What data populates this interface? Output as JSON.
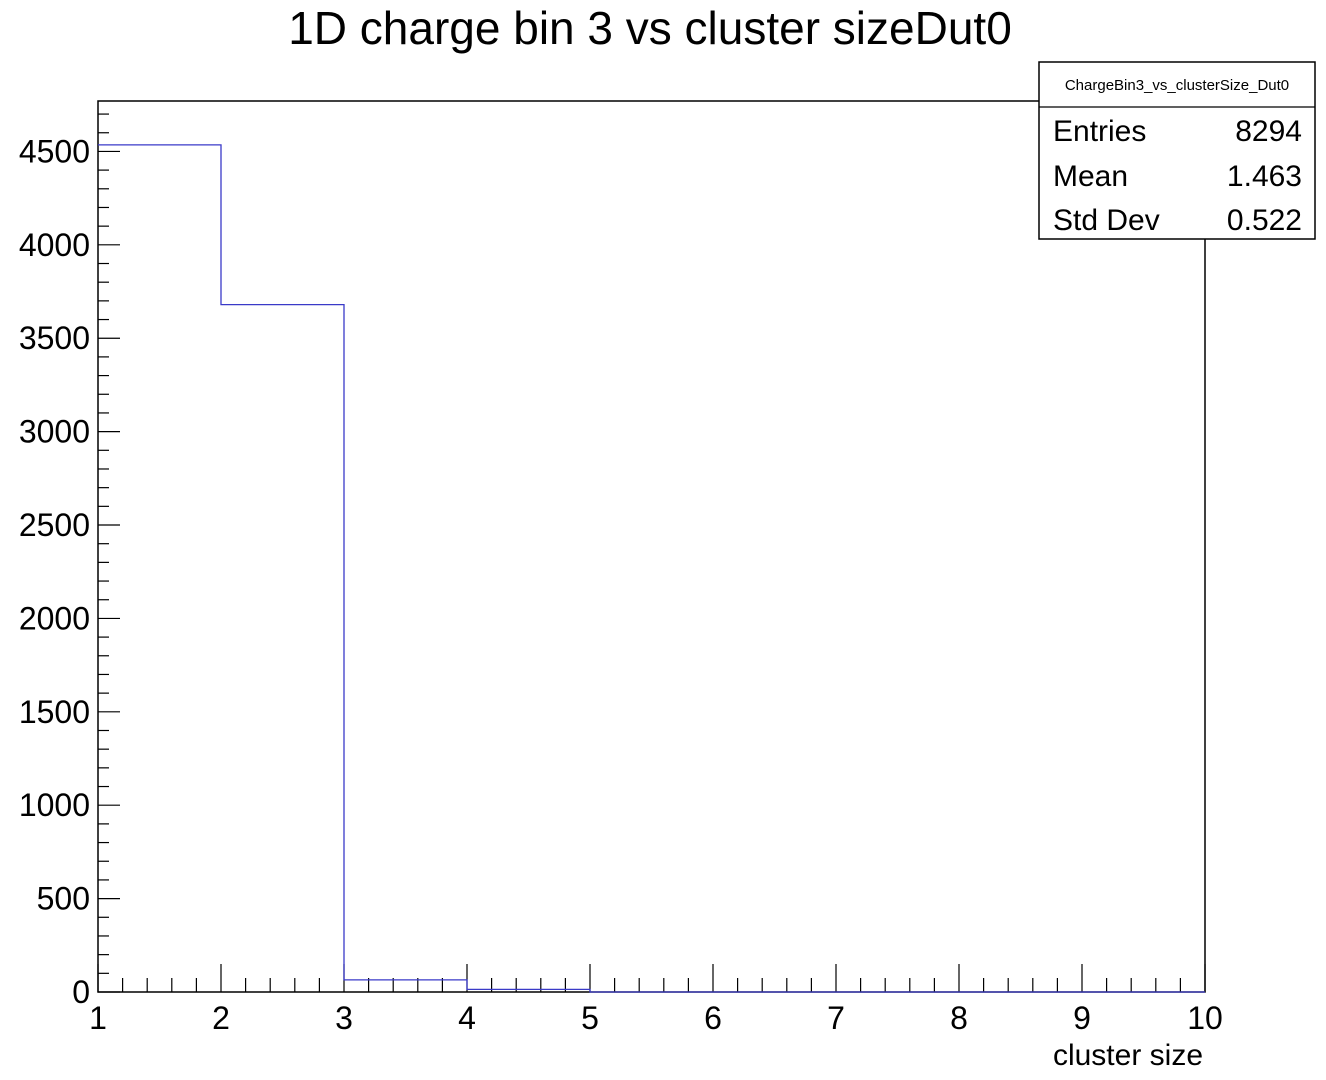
{
  "chart_data": {
    "type": "bar",
    "title": "1D charge bin 3 vs cluster sizeDut0",
    "xlabel": "cluster size",
    "ylabel": "",
    "xlim": [
      1,
      10
    ],
    "ylim": [
      0,
      4770
    ],
    "bin_edges": [
      1,
      2,
      3,
      4,
      5,
      6,
      7,
      8,
      9,
      10
    ],
    "values": [
      4535,
      3680,
      65,
      14,
      0,
      0,
      0,
      0,
      0
    ],
    "x_ticks": [
      "1",
      "2",
      "3",
      "4",
      "5",
      "6",
      "7",
      "8",
      "9",
      "10"
    ],
    "y_ticks": [
      "0",
      "500",
      "1000",
      "1500",
      "2000",
      "2500",
      "3000",
      "3500",
      "4000",
      "4500"
    ],
    "series_color": "#3a3ac8",
    "grid": false
  },
  "stats_box": {
    "name": "ChargeBin3_vs_clusterSize_Dut0",
    "rows": [
      {
        "label": "Entries",
        "value": "8294"
      },
      {
        "label": "Mean",
        "value": "1.463"
      },
      {
        "label": "Std Dev",
        "value": "0.522"
      }
    ]
  }
}
